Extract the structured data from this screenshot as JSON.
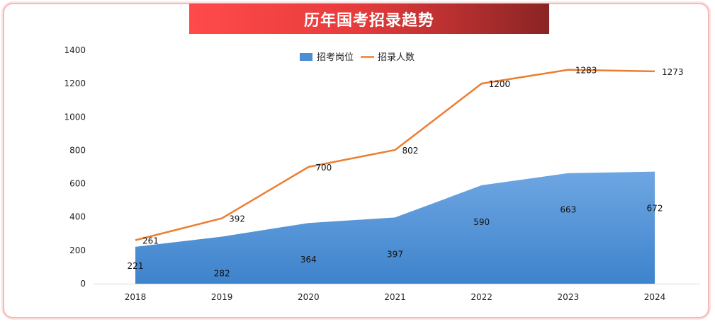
{
  "chart_data": {
    "type": "area",
    "title": "历年国考招录趋势",
    "categories": [
      "2018",
      "2019",
      "2020",
      "2021",
      "2022",
      "2023",
      "2024"
    ],
    "series": [
      {
        "name": "招考岗位",
        "type": "area",
        "color": "#4a8ed6",
        "values": [
          221,
          282,
          364,
          397,
          590,
          663,
          672
        ]
      },
      {
        "name": "招录人数",
        "type": "line",
        "color": "#ed7d31",
        "values": [
          261,
          392,
          700,
          802,
          1200,
          1283,
          1273
        ]
      }
    ],
    "ylim": [
      0,
      1400
    ],
    "yticks": [
      0,
      200,
      400,
      600,
      800,
      1000,
      1200,
      1400
    ],
    "legend_position": "top-center",
    "grid": false
  }
}
